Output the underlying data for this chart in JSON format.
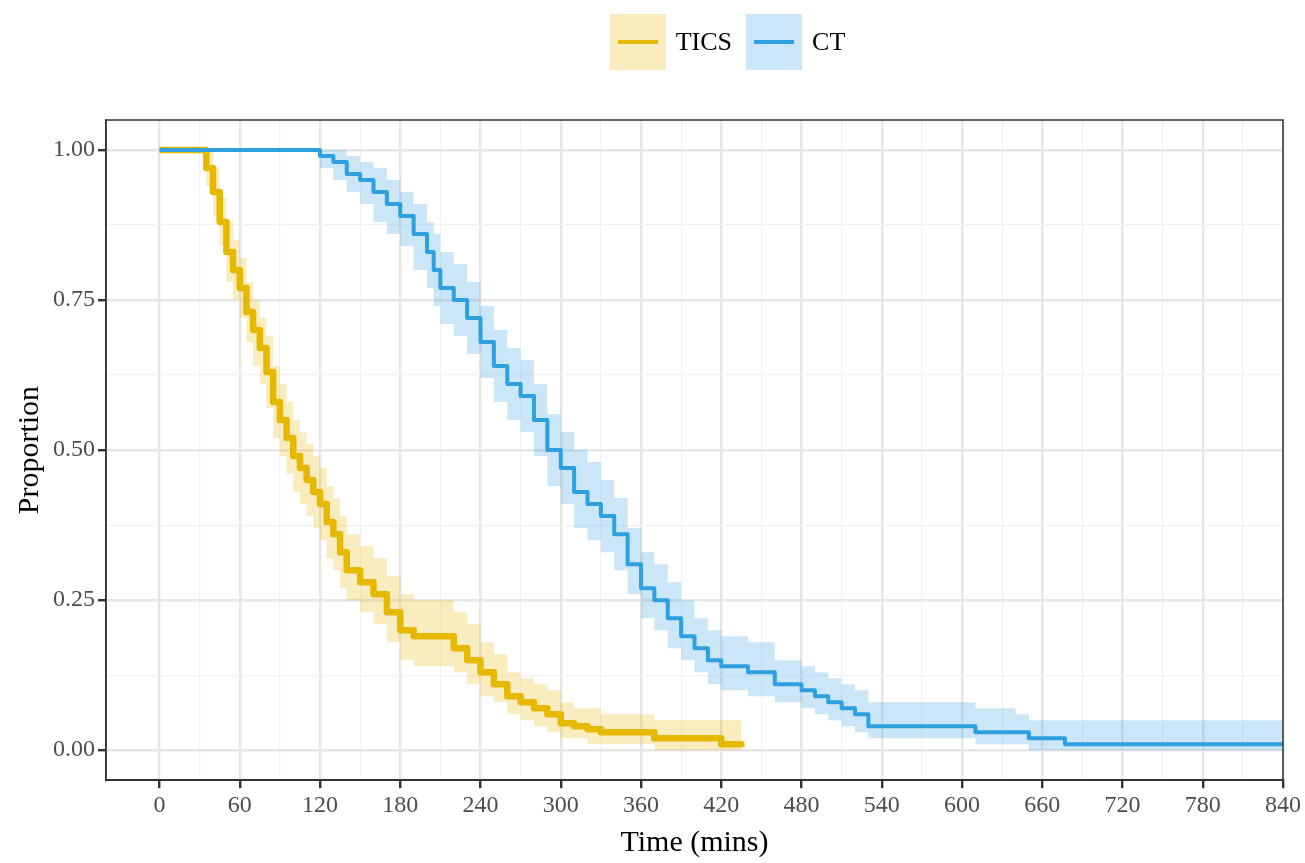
{
  "chart_data": {
    "type": "step",
    "xlabel": "Time (mins)",
    "ylabel": "Proportion",
    "legend": "top",
    "grid": true,
    "line_style": "solid",
    "marker": "none",
    "xlim": [
      -40,
      840
    ],
    "ylim": [
      -0.05,
      1.05
    ],
    "xticks": [
      0,
      {
        "value": 30,
        "label": null
      },
      60,
      {
        "value": 90,
        "label": null
      },
      120,
      {
        "value": 150,
        "label": null
      },
      180,
      {
        "value": 210,
        "label": null
      },
      240,
      {
        "value": 270,
        "label": null
      },
      300,
      {
        "value": 330,
        "label": null
      },
      360,
      {
        "value": 390,
        "label": null
      },
      420,
      {
        "value": 450,
        "label": null
      },
      480,
      {
        "value": 510,
        "label": null
      },
      540,
      {
        "value": 570,
        "label": null
      },
      600,
      {
        "value": 630,
        "label": null
      },
      660,
      {
        "value": 690,
        "label": null
      },
      720,
      {
        "value": 750,
        "label": null
      },
      780,
      {
        "value": 810,
        "label": null
      },
      840
    ],
    "yticks": [
      {
        "value": 0,
        "label": "0.00"
      },
      {
        "value": 0.125,
        "label": null
      },
      {
        "value": 0.25,
        "label": "0.25"
      },
      {
        "value": 0.375,
        "label": null
      },
      {
        "value": 0.5,
        "label": "0.50"
      },
      {
        "value": 0.625,
        "label": null
      },
      {
        "value": 0.75,
        "label": "0.75"
      },
      {
        "value": 0.875,
        "label": null
      },
      {
        "value": 1,
        "label": "1.00"
      }
    ],
    "series": [
      {
        "name": "TICS",
        "color": "#e7b800",
        "x": [
          0,
          30,
          35,
          40,
          45,
          50,
          55,
          60,
          65,
          70,
          75,
          80,
          85,
          90,
          95,
          100,
          105,
          110,
          115,
          120,
          125,
          130,
          135,
          140,
          150,
          160,
          170,
          180,
          190,
          210,
          220,
          230,
          240,
          250,
          260,
          270,
          280,
          290,
          300,
          310,
          320,
          330,
          360,
          370,
          400,
          420,
          435
        ],
        "values": [
          1,
          1,
          0.97,
          0.93,
          0.88,
          0.83,
          0.8,
          0.77,
          0.73,
          0.7,
          0.67,
          0.63,
          0.58,
          0.55,
          0.52,
          0.49,
          0.47,
          0.45,
          0.43,
          0.41,
          0.38,
          0.36,
          0.33,
          0.3,
          0.28,
          0.26,
          0.23,
          0.2,
          0.19,
          0.19,
          0.17,
          0.15,
          0.13,
          0.11,
          0.09,
          0.08,
          0.07,
          0.06,
          0.045,
          0.04,
          0.035,
          0.03,
          0.03,
          0.02,
          0.02,
          0.01,
          0.005
        ],
        "lower": [
          1,
          1,
          0.94,
          0.89,
          0.84,
          0.78,
          0.75,
          0.72,
          0.68,
          0.64,
          0.61,
          0.57,
          0.52,
          0.49,
          0.46,
          0.43,
          0.41,
          0.39,
          0.37,
          0.35,
          0.32,
          0.3,
          0.27,
          0.25,
          0.23,
          0.21,
          0.18,
          0.15,
          0.14,
          0.14,
          0.13,
          0.11,
          0.09,
          0.08,
          0.06,
          0.05,
          0.04,
          0.03,
          0.02,
          0.02,
          0.01,
          0.01,
          0.01,
          0,
          0,
          0,
          0
        ],
        "upper": [
          1,
          1,
          1,
          0.97,
          0.92,
          0.88,
          0.85,
          0.82,
          0.78,
          0.75,
          0.72,
          0.69,
          0.64,
          0.61,
          0.58,
          0.55,
          0.53,
          0.51,
          0.49,
          0.47,
          0.44,
          0.42,
          0.39,
          0.36,
          0.34,
          0.32,
          0.29,
          0.26,
          0.25,
          0.25,
          0.23,
          0.21,
          0.18,
          0.16,
          0.13,
          0.12,
          0.11,
          0.1,
          0.08,
          0.07,
          0.07,
          0.06,
          0.06,
          0.05,
          0.05,
          0.05,
          0.05
        ]
      },
      {
        "name": "CT",
        "color": "#2e9fdf",
        "x": [
          0,
          115,
          120,
          130,
          140,
          150,
          160,
          170,
          180,
          190,
          200,
          205,
          210,
          220,
          230,
          240,
          250,
          260,
          270,
          280,
          290,
          300,
          310,
          320,
          330,
          340,
          350,
          360,
          370,
          380,
          390,
          400,
          410,
          420,
          440,
          460,
          480,
          490,
          500,
          510,
          520,
          530,
          600,
          610,
          640,
          650,
          675,
          677,
          840
        ],
        "values": [
          1,
          1,
          0.99,
          0.98,
          0.96,
          0.95,
          0.93,
          0.91,
          0.89,
          0.86,
          0.83,
          0.8,
          0.77,
          0.75,
          0.72,
          0.68,
          0.64,
          0.61,
          0.59,
          0.55,
          0.5,
          0.47,
          0.43,
          0.41,
          0.39,
          0.36,
          0.31,
          0.27,
          0.25,
          0.22,
          0.19,
          0.17,
          0.15,
          0.14,
          0.13,
          0.11,
          0.1,
          0.09,
          0.08,
          0.07,
          0.06,
          0.04,
          0.04,
          0.03,
          0.03,
          0.02,
          0.02,
          0.01,
          0.01
        ],
        "lower": [
          1,
          1,
          0.97,
          0.95,
          0.93,
          0.91,
          0.88,
          0.86,
          0.84,
          0.8,
          0.77,
          0.74,
          0.71,
          0.69,
          0.66,
          0.62,
          0.58,
          0.55,
          0.53,
          0.49,
          0.44,
          0.41,
          0.37,
          0.35,
          0.33,
          0.3,
          0.26,
          0.22,
          0.2,
          0.17,
          0.15,
          0.13,
          0.11,
          0.1,
          0.09,
          0.08,
          0.07,
          0.06,
          0.05,
          0.04,
          0.03,
          0.02,
          0.02,
          0.01,
          0.01,
          0,
          0,
          0,
          0
        ],
        "upper": [
          1,
          1,
          1,
          1,
          0.99,
          0.98,
          0.97,
          0.95,
          0.93,
          0.91,
          0.88,
          0.86,
          0.83,
          0.81,
          0.78,
          0.74,
          0.7,
          0.67,
          0.65,
          0.61,
          0.56,
          0.53,
          0.5,
          0.48,
          0.45,
          0.42,
          0.37,
          0.33,
          0.31,
          0.28,
          0.25,
          0.22,
          0.2,
          0.19,
          0.18,
          0.15,
          0.14,
          0.13,
          0.12,
          0.11,
          0.1,
          0.08,
          0.08,
          0.07,
          0.06,
          0.05,
          0.05,
          0.05,
          0.05
        ]
      }
    ]
  }
}
